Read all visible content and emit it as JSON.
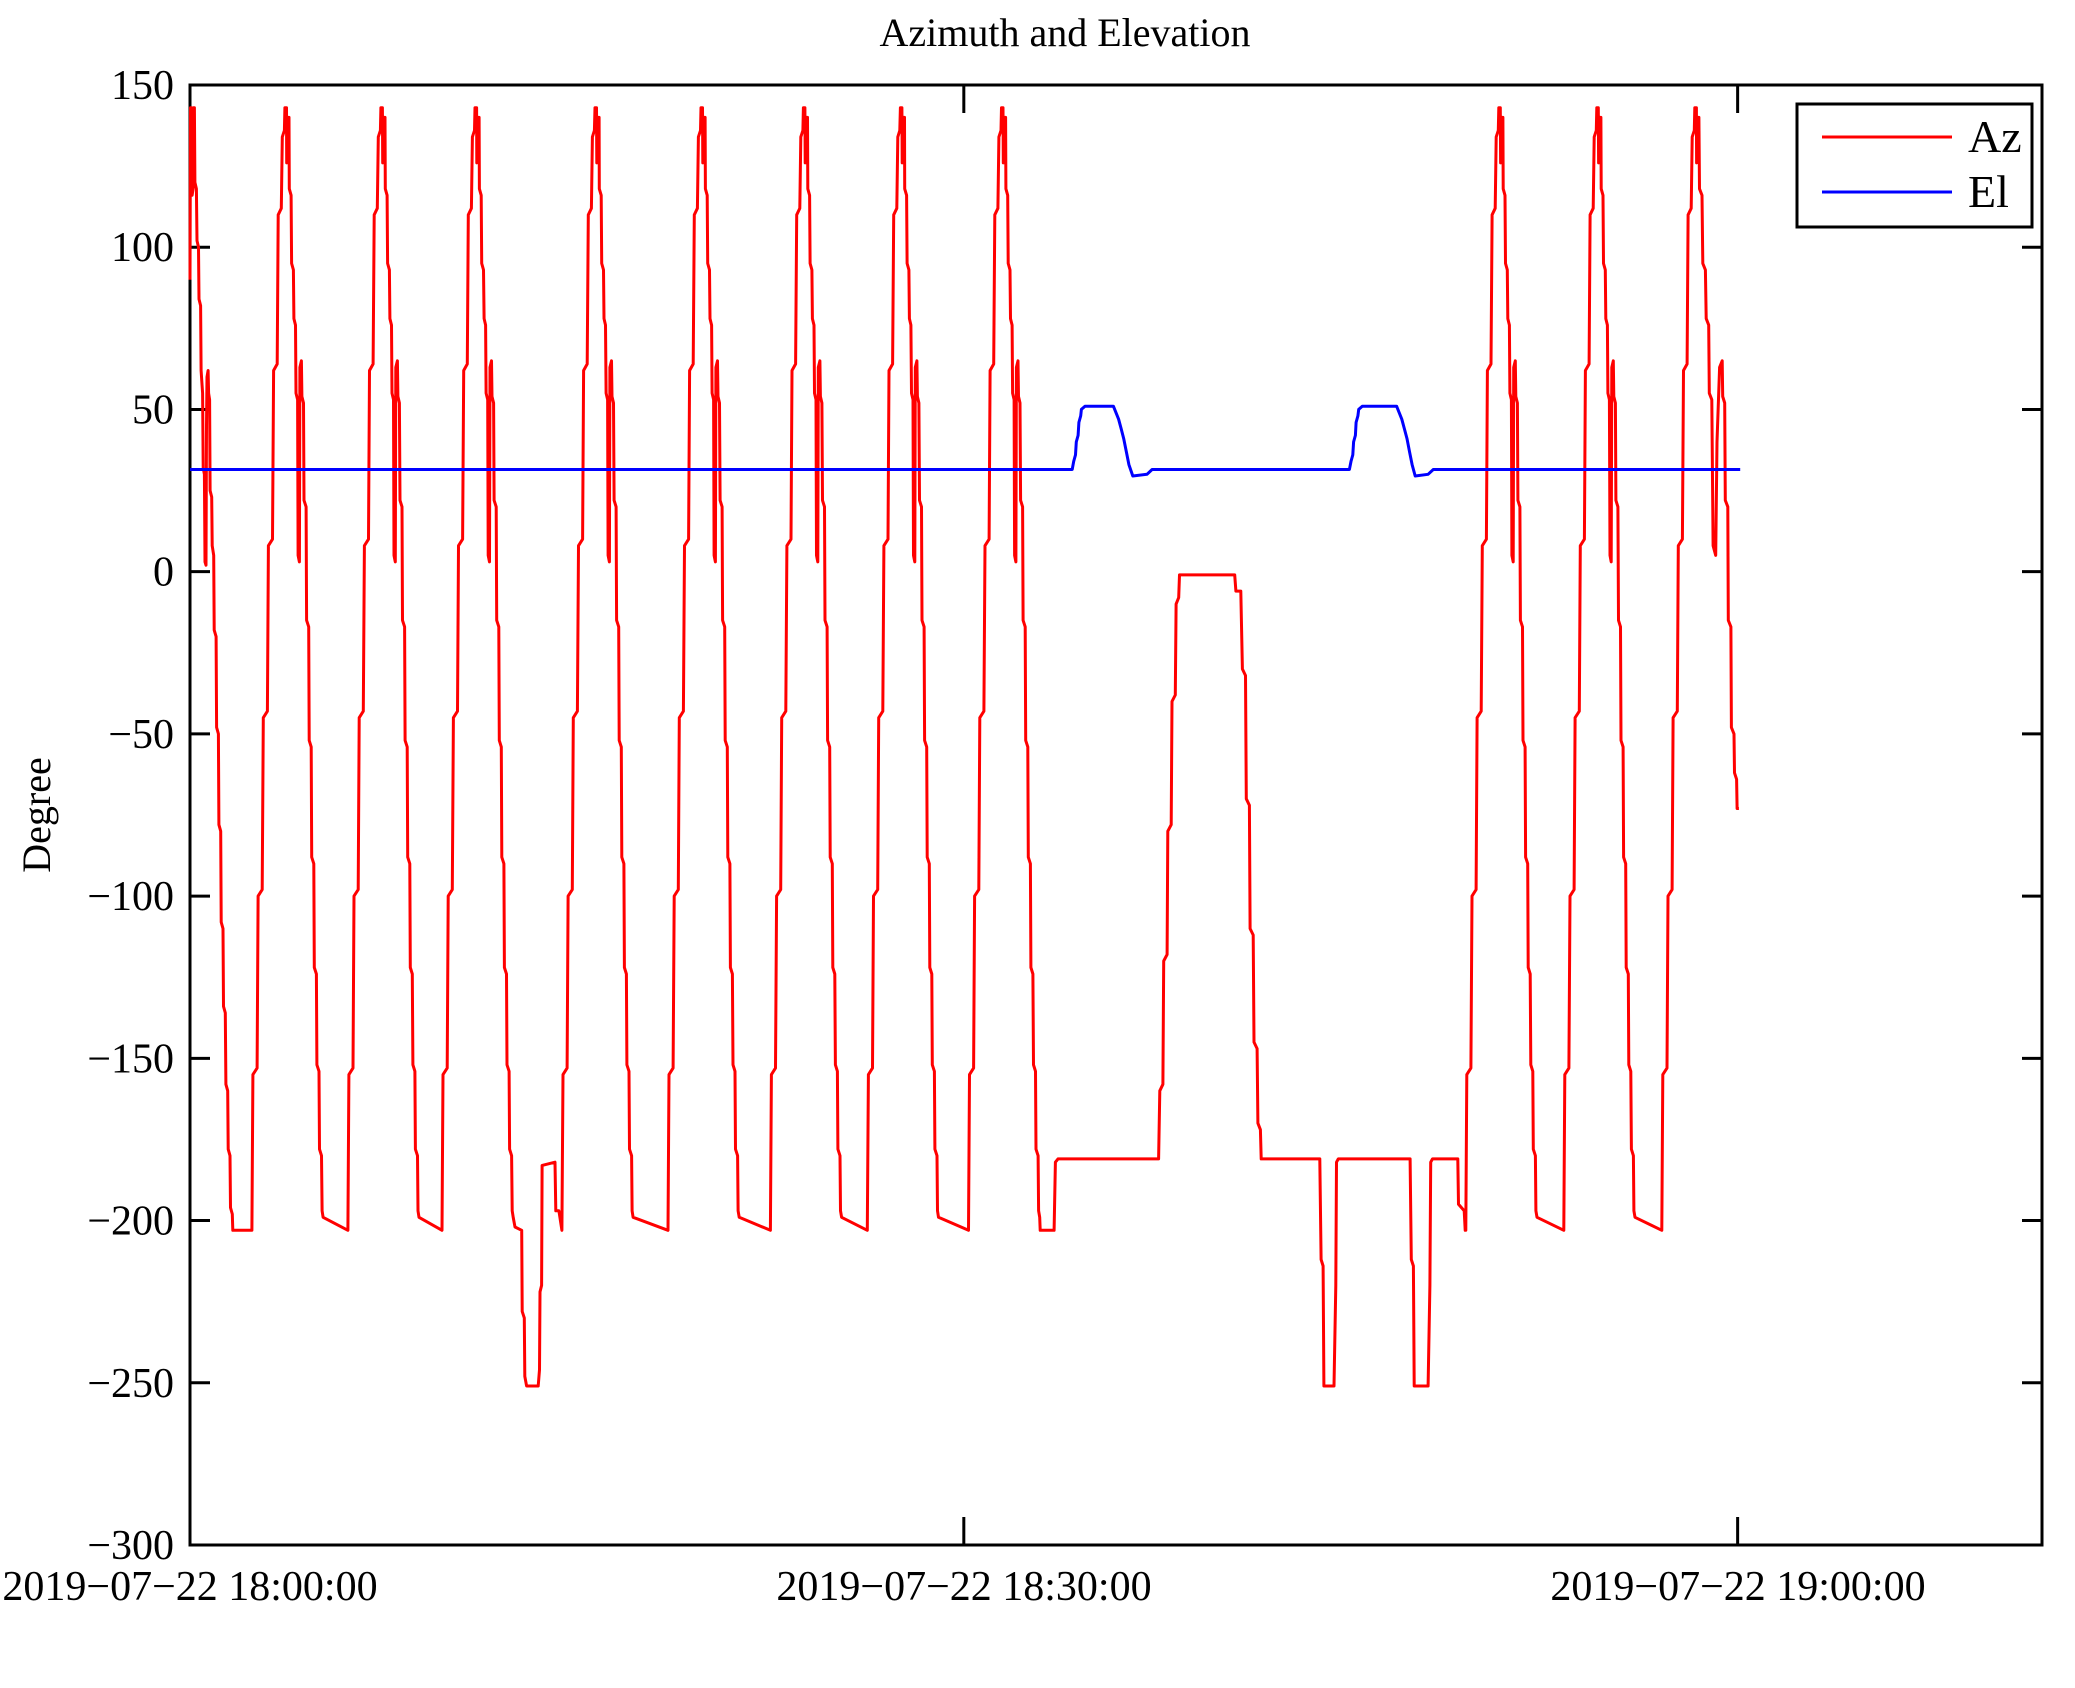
{
  "chart_data": {
    "type": "line",
    "title": "Azimuth and Elevation",
    "ylabel": "Degree",
    "xlabel": "",
    "ylim": [
      -300,
      150
    ],
    "yticks": [
      150,
      100,
      50,
      0,
      -50,
      -100,
      -150,
      -200,
      -250,
      -300
    ],
    "ytick_labels": [
      "150",
      "100",
      "50",
      "0",
      "−50",
      "−100",
      "−150",
      "−200",
      "−250",
      "−300"
    ],
    "grid": false,
    "legend_position": "top-right",
    "x_axis": {
      "unit": "minutes after 2019-07-22 18:00:00",
      "range": [
        0,
        71.8
      ],
      "ticks": [
        {
          "t": 0,
          "label": "2019−07−22 18:00:00"
        },
        {
          "t": 30,
          "label": "2019−07−22 18:30:00"
        },
        {
          "t": 60,
          "label": "2019−07−22 19:00:00"
        }
      ]
    },
    "series": [
      {
        "name": "Az",
        "color": "#ff0000",
        "peak_value": 143,
        "bottom_value": -203,
        "rise_rel": [
          [
            -1.4,
            -203
          ],
          [
            -1.36,
            -155
          ],
          [
            -1.2,
            -153
          ],
          [
            -1.16,
            -100
          ],
          [
            -1.0,
            -98
          ],
          [
            -0.96,
            -45
          ],
          [
            -0.8,
            -43
          ],
          [
            -0.76,
            8
          ],
          [
            -0.6,
            10
          ],
          [
            -0.56,
            62
          ],
          [
            -0.42,
            64
          ],
          [
            -0.38,
            110
          ],
          [
            -0.26,
            112
          ],
          [
            -0.22,
            134
          ],
          [
            -0.14,
            136
          ],
          [
            -0.12,
            143
          ],
          [
            -0.06,
            143
          ]
        ],
        "fall_rel": [
          [
            -0.05,
            126
          ],
          [
            -0.01,
            128
          ],
          [
            0.0,
            140
          ],
          [
            0.04,
            140
          ],
          [
            0.05,
            118
          ],
          [
            0.12,
            116
          ],
          [
            0.14,
            95
          ],
          [
            0.21,
            93
          ],
          [
            0.23,
            78
          ],
          [
            0.29,
            76
          ],
          [
            0.31,
            55
          ],
          [
            0.37,
            53
          ],
          [
            0.39,
            5
          ],
          [
            0.44,
            3
          ],
          [
            0.46,
            63
          ],
          [
            0.52,
            65
          ],
          [
            0.54,
            54
          ],
          [
            0.6,
            52
          ],
          [
            0.62,
            22
          ],
          [
            0.7,
            20
          ],
          [
            0.72,
            -15
          ],
          [
            0.8,
            -17
          ],
          [
            0.82,
            -52
          ],
          [
            0.9,
            -54
          ],
          [
            0.92,
            -88
          ],
          [
            1.0,
            -90
          ],
          [
            1.02,
            -122
          ],
          [
            1.1,
            -124
          ],
          [
            1.12,
            -152
          ],
          [
            1.2,
            -154
          ],
          [
            1.22,
            -178
          ],
          [
            1.3,
            -180
          ],
          [
            1.32,
            -197
          ],
          [
            1.36,
            -199
          ]
        ],
        "sequence": [
          {
            "seg": "start"
          },
          {
            "peak": 3.8
          },
          {
            "peak": 7.52
          },
          {
            "peak": 11.17
          },
          {
            "seg": "deep_detour"
          },
          {
            "peak": 15.82
          },
          {
            "peak": 19.93
          },
          {
            "peak": 23.9
          },
          {
            "peak": 27.66
          },
          {
            "peak": 31.58
          },
          {
            "seg": "mid_flat"
          },
          {
            "peak": 50.86
          },
          {
            "peak": 54.66
          },
          {
            "rise": 58.46
          },
          {
            "seg": "end_tail"
          }
        ],
        "segments": {
          "start": [
            [
              0.0,
              90
            ],
            [
              0.02,
              143
            ],
            [
              0.06,
              143
            ],
            [
              0.08,
              116
            ],
            [
              0.12,
              118
            ],
            [
              0.13,
              143
            ],
            [
              0.17,
              143
            ],
            [
              0.19,
              120
            ],
            [
              0.25,
              118
            ],
            [
              0.27,
              102
            ],
            [
              0.33,
              100
            ],
            [
              0.35,
              84
            ],
            [
              0.41,
              82
            ],
            [
              0.43,
              62
            ],
            [
              0.49,
              55
            ],
            [
              0.51,
              32
            ],
            [
              0.56,
              30
            ],
            [
              0.58,
              3
            ],
            [
              0.62,
              2
            ],
            [
              0.64,
              45
            ],
            [
              0.66,
              60
            ],
            [
              0.7,
              62
            ],
            [
              0.72,
              55
            ],
            [
              0.76,
              53
            ],
            [
              0.78,
              25
            ],
            [
              0.84,
              23
            ],
            [
              0.86,
              8
            ],
            [
              0.92,
              5
            ],
            [
              0.94,
              -18
            ],
            [
              1.01,
              -20
            ],
            [
              1.03,
              -48
            ],
            [
              1.1,
              -50
            ],
            [
              1.12,
              -78
            ],
            [
              1.19,
              -80
            ],
            [
              1.21,
              -108
            ],
            [
              1.28,
              -110
            ],
            [
              1.3,
              -134
            ],
            [
              1.37,
              -136
            ],
            [
              1.39,
              -158
            ],
            [
              1.46,
              -160
            ],
            [
              1.48,
              -178
            ],
            [
              1.55,
              -180
            ],
            [
              1.57,
              -196
            ],
            [
              1.64,
              -198
            ],
            [
              1.66,
              -203
            ],
            [
              2.4,
              -203
            ]
          ],
          "deep_detour": [
            [
              12.6,
              -202
            ],
            [
              12.86,
              -203
            ],
            [
              12.88,
              -228
            ],
            [
              12.96,
              -230
            ],
            [
              12.98,
              -248
            ],
            [
              13.05,
              -251
            ],
            [
              13.5,
              -251
            ],
            [
              13.55,
              -246
            ],
            [
              13.57,
              -222
            ],
            [
              13.63,
              -220
            ],
            [
              13.65,
              -183
            ],
            [
              14.15,
              -182
            ],
            [
              14.18,
              -197
            ],
            [
              14.3,
              -197
            ]
          ],
          "mid_flat": [
            [
              32.96,
              -203
            ],
            [
              33.5,
              -203
            ],
            [
              33.55,
              -182
            ],
            [
              33.65,
              -181
            ],
            [
              37.55,
              -181
            ],
            [
              37.6,
              -160
            ],
            [
              37.72,
              -158
            ],
            [
              37.75,
              -120
            ],
            [
              37.88,
              -118
            ],
            [
              37.91,
              -80
            ],
            [
              38.04,
              -78
            ],
            [
              38.07,
              -40
            ],
            [
              38.2,
              -38
            ],
            [
              38.23,
              -10
            ],
            [
              38.33,
              -8
            ],
            [
              38.36,
              -1
            ],
            [
              40.5,
              -1
            ],
            [
              40.55,
              -6
            ],
            [
              40.74,
              -6
            ],
            [
              40.8,
              -30
            ],
            [
              40.92,
              -32
            ],
            [
              40.95,
              -70
            ],
            [
              41.07,
              -72
            ],
            [
              41.1,
              -110
            ],
            [
              41.22,
              -112
            ],
            [
              41.25,
              -145
            ],
            [
              41.37,
              -147
            ],
            [
              41.4,
              -170
            ],
            [
              41.5,
              -172
            ],
            [
              41.53,
              -181
            ],
            [
              43.8,
              -181
            ],
            [
              43.85,
              -212
            ],
            [
              43.93,
              -214
            ],
            [
              43.96,
              -251
            ],
            [
              44.35,
              -251
            ],
            [
              44.42,
              -220
            ],
            [
              44.45,
              -182
            ],
            [
              44.52,
              -181
            ],
            [
              47.3,
              -181
            ],
            [
              47.35,
              -212
            ],
            [
              47.43,
              -214
            ],
            [
              47.46,
              -251
            ],
            [
              48.0,
              -251
            ],
            [
              48.07,
              -220
            ],
            [
              48.1,
              -182
            ],
            [
              48.17,
              -181
            ],
            [
              49.15,
              -181
            ],
            [
              49.18,
              -195
            ],
            [
              49.4,
              -197
            ],
            [
              49.44,
              -203
            ]
          ],
          "end_tail": [
            [
              58.41,
              126
            ],
            [
              58.45,
              128
            ],
            [
              58.46,
              140
            ],
            [
              58.5,
              140
            ],
            [
              58.52,
              118
            ],
            [
              58.62,
              116
            ],
            [
              58.65,
              95
            ],
            [
              58.75,
              93
            ],
            [
              58.78,
              78
            ],
            [
              58.88,
              76
            ],
            [
              58.9,
              55
            ],
            [
              59.0,
              53
            ],
            [
              59.05,
              8
            ],
            [
              59.15,
              5
            ],
            [
              59.2,
              40
            ],
            [
              59.3,
              63
            ],
            [
              59.4,
              65
            ],
            [
              59.42,
              54
            ],
            [
              59.5,
              52
            ],
            [
              59.52,
              22
            ],
            [
              59.62,
              20
            ],
            [
              59.64,
              -15
            ],
            [
              59.74,
              -17
            ],
            [
              59.76,
              -48
            ],
            [
              59.86,
              -50
            ],
            [
              59.88,
              -62
            ],
            [
              59.96,
              -64
            ],
            [
              59.98,
              -73
            ],
            [
              60.05,
              -73
            ]
          ]
        }
      },
      {
        "name": "El",
        "color": "#0000ff",
        "flat_value": 31.5,
        "bump_value": 51,
        "points": [
          [
            0.0,
            31.5
          ],
          [
            34.2,
            31.5
          ],
          [
            34.26,
            34
          ],
          [
            34.33,
            36
          ],
          [
            34.36,
            40
          ],
          [
            34.43,
            42
          ],
          [
            34.46,
            46
          ],
          [
            34.53,
            48
          ],
          [
            34.56,
            50
          ],
          [
            34.7,
            51
          ],
          [
            35.8,
            51
          ],
          [
            35.9,
            49
          ],
          [
            36.0,
            47
          ],
          [
            36.1,
            44
          ],
          [
            36.2,
            41
          ],
          [
            36.3,
            37
          ],
          [
            36.4,
            33
          ],
          [
            36.55,
            29.5
          ],
          [
            37.1,
            30
          ],
          [
            37.3,
            31.5
          ],
          [
            44.95,
            31.5
          ],
          [
            45.01,
            34
          ],
          [
            45.08,
            36
          ],
          [
            45.11,
            40
          ],
          [
            45.18,
            42
          ],
          [
            45.21,
            46
          ],
          [
            45.28,
            48
          ],
          [
            45.31,
            50
          ],
          [
            45.45,
            51
          ],
          [
            46.78,
            51
          ],
          [
            46.88,
            49
          ],
          [
            46.98,
            47
          ],
          [
            47.08,
            44
          ],
          [
            47.18,
            41
          ],
          [
            47.28,
            37
          ],
          [
            47.38,
            33
          ],
          [
            47.5,
            29.5
          ],
          [
            48.0,
            30
          ],
          [
            48.2,
            31.5
          ],
          [
            60.1,
            31.5
          ]
        ]
      }
    ]
  },
  "legend": {
    "az_label": "Az",
    "el_label": "El"
  }
}
